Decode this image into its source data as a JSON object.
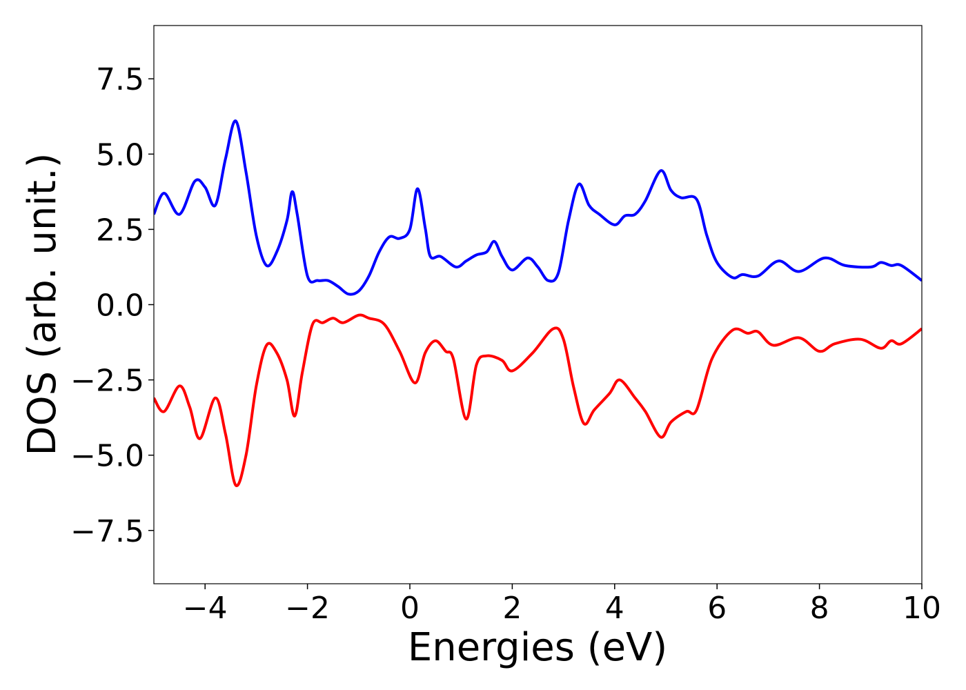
{
  "chart_data": {
    "type": "line",
    "xlabel": "Energies (eV)",
    "ylabel": "DOS (arb. unit.)",
    "xlim": [
      -5,
      10
    ],
    "ylim": [
      -9.27,
      9.27
    ],
    "xticks": [
      {
        "value": -4,
        "label": "−4"
      },
      {
        "value": -2,
        "label": "−2"
      },
      0,
      2,
      4,
      6,
      8,
      10
    ],
    "yticks": [
      {
        "value": -7.5,
        "label": "−7.5"
      },
      {
        "value": -5,
        "label": "−5.0"
      },
      {
        "value": -2.5,
        "label": "−2.5"
      },
      {
        "value": 0,
        "label": "0.0"
      },
      2.5,
      {
        "value": 5,
        "label": "5.0"
      },
      7.5
    ],
    "grid": false,
    "series": [
      {
        "color": "#0000ff",
        "x": [
          -5,
          -4.8,
          -4.5,
          -4.2,
          -4.0,
          -3.8,
          -3.6,
          -3.4,
          -3.2,
          -3.0,
          -2.8,
          -2.6,
          -2.4,
          -2.3,
          -2.2,
          -2.0,
          -1.8,
          -1.6,
          -1.4,
          -1.2,
          -1.0,
          -0.8,
          -0.6,
          -0.4,
          -0.2,
          0.0,
          0.15,
          0.3,
          0.4,
          0.6,
          0.9,
          1.1,
          1.3,
          1.5,
          1.65,
          1.8,
          2.0,
          2.3,
          2.5,
          2.7,
          2.9,
          3.1,
          3.3,
          3.5,
          3.7,
          4.0,
          4.2,
          4.4,
          4.6,
          4.9,
          5.1,
          5.3,
          5.6,
          5.8,
          6.0,
          6.3,
          6.5,
          6.8,
          7.2,
          7.6,
          8.1,
          8.5,
          9.0,
          9.2,
          9.4,
          9.6,
          10
        ],
        "values": [
          3.0,
          3.7,
          3.0,
          4.1,
          3.9,
          3.3,
          4.85,
          6.1,
          4.4,
          2.3,
          1.3,
          1.75,
          2.8,
          3.75,
          3.0,
          0.95,
          0.8,
          0.8,
          0.6,
          0.35,
          0.45,
          0.95,
          1.75,
          2.25,
          2.2,
          2.5,
          3.85,
          2.55,
          1.6,
          1.6,
          1.25,
          1.45,
          1.65,
          1.75,
          2.1,
          1.6,
          1.15,
          1.55,
          1.25,
          0.8,
          1.05,
          2.8,
          4.0,
          3.3,
          3.0,
          2.65,
          2.95,
          3.0,
          3.45,
          4.45,
          3.8,
          3.55,
          3.5,
          2.3,
          1.4,
          0.9,
          1.0,
          0.95,
          1.45,
          1.1,
          1.55,
          1.3,
          1.25,
          1.4,
          1.3,
          1.3,
          0.8
        ]
      },
      {
        "color": "#ff0000",
        "x": [
          -5,
          -4.8,
          -4.5,
          -4.3,
          -4.1,
          -3.8,
          -3.6,
          -3.4,
          -3.2,
          -3.0,
          -2.8,
          -2.6,
          -2.4,
          -2.25,
          -2.1,
          -1.9,
          -1.7,
          -1.5,
          -1.3,
          -1.0,
          -0.8,
          -0.5,
          -0.2,
          0.1,
          0.3,
          0.5,
          0.7,
          0.85,
          1.1,
          1.3,
          1.5,
          1.8,
          2.0,
          2.4,
          2.8,
          3.0,
          3.2,
          3.4,
          3.6,
          3.9,
          4.1,
          4.4,
          4.6,
          4.9,
          5.1,
          5.4,
          5.6,
          5.9,
          6.3,
          6.6,
          6.8,
          7.1,
          7.6,
          8.0,
          8.3,
          8.8,
          9.2,
          9.4,
          9.6,
          10
        ],
        "values": [
          -3.1,
          -3.55,
          -2.7,
          -3.4,
          -4.45,
          -3.1,
          -4.3,
          -6.0,
          -5.0,
          -2.7,
          -1.35,
          -1.6,
          -2.5,
          -3.7,
          -2.25,
          -0.65,
          -0.6,
          -0.45,
          -0.6,
          -0.35,
          -0.45,
          -0.65,
          -1.55,
          -2.6,
          -1.6,
          -1.2,
          -1.55,
          -1.8,
          -3.8,
          -2.0,
          -1.7,
          -1.85,
          -2.2,
          -1.6,
          -0.8,
          -1.15,
          -2.75,
          -3.95,
          -3.5,
          -2.95,
          -2.5,
          -3.1,
          -3.55,
          -4.4,
          -3.9,
          -3.55,
          -3.5,
          -1.8,
          -0.85,
          -0.95,
          -0.9,
          -1.35,
          -1.1,
          -1.55,
          -1.3,
          -1.15,
          -1.45,
          -1.2,
          -1.3,
          -0.8
        ]
      }
    ]
  }
}
